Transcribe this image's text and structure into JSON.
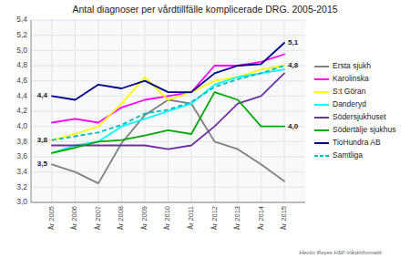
{
  "chart_data": {
    "type": "line",
    "title": "Antal diagnoser per vårdtillfälle komplicerade DRG. 2005-2015",
    "categories": [
      "År 2005",
      "År 2006",
      "År 2007",
      "År 2008",
      "År 2009",
      "År 2010",
      "År 2011",
      "År 2012",
      "År 2013",
      "År 2014",
      "År 2015"
    ],
    "series": [
      {
        "name": "Ersta sjukh",
        "color": "#808080",
        "line_style": "solid",
        "values": [
          3.5,
          3.4,
          3.25,
          3.78,
          4.15,
          4.35,
          4.3,
          3.8,
          3.7,
          3.5,
          3.28
        ]
      },
      {
        "name": "Karolinska",
        "color": "#ff00ff",
        "line_style": "solid",
        "values": [
          4.05,
          4.1,
          4.05,
          4.25,
          4.35,
          4.4,
          4.45,
          4.8,
          4.8,
          4.85,
          4.95
        ]
      },
      {
        "name": "S:t Göran",
        "color": "#ffff00",
        "line_style": "solid",
        "values": [
          3.82,
          3.9,
          4.0,
          4.3,
          4.65,
          4.35,
          4.45,
          4.6,
          4.65,
          4.75,
          4.8
        ]
      },
      {
        "name": "Danderyd",
        "color": "#00ffff",
        "line_style": "solid",
        "values": [
          3.65,
          3.75,
          3.8,
          4.0,
          4.1,
          4.2,
          4.3,
          4.55,
          4.65,
          4.7,
          4.75
        ]
      },
      {
        "name": "Södersjukhuset",
        "color": "#7030a0",
        "line_style": "solid",
        "values": [
          3.75,
          3.75,
          3.75,
          3.75,
          3.75,
          3.7,
          3.75,
          4.0,
          4.3,
          4.4,
          4.7
        ]
      },
      {
        "name": "Södertälje sjukhus",
        "color": "#00aa00",
        "line_style": "solid",
        "values": [
          3.65,
          3.72,
          3.8,
          3.82,
          3.88,
          3.95,
          3.9,
          4.45,
          4.35,
          4.0,
          4.0
        ]
      },
      {
        "name": "TioHundra AB",
        "color": "#00008b",
        "line_style": "solid",
        "values": [
          4.4,
          4.35,
          4.55,
          4.5,
          4.6,
          4.45,
          4.45,
          4.7,
          4.8,
          4.82,
          5.1
        ]
      },
      {
        "name": "Samtliga",
        "color": "#00bbbb",
        "line_style": "dashed",
        "values": [
          3.82,
          3.87,
          3.92,
          4.02,
          4.17,
          4.22,
          4.32,
          4.52,
          4.62,
          4.7,
          4.8
        ]
      }
    ],
    "ylim": [
      3.0,
      5.4
    ],
    "yticks": [
      {
        "value": 3.0,
        "label": "3,0"
      },
      {
        "value": 3.2,
        "label": "3,2"
      },
      {
        "value": 3.4,
        "label": "3,4"
      },
      {
        "value": 3.6,
        "label": "3,6"
      },
      {
        "value": 3.8,
        "label": "3,8"
      },
      {
        "value": 4.0,
        "label": "4,0"
      },
      {
        "value": 4.2,
        "label": "4,2"
      },
      {
        "value": 4.4,
        "label": "4,4"
      },
      {
        "value": 4.6,
        "label": "4,6"
      },
      {
        "value": 4.8,
        "label": "4,8"
      },
      {
        "value": 5.0,
        "label": "5,0"
      },
      {
        "value": 5.2,
        "label": "5,2"
      },
      {
        "value": 5.4,
        "label": "5,4"
      }
    ],
    "grid": true,
    "legend": "right",
    "annotations": [
      {
        "text": "4,4",
        "x": "År 2005",
        "y": 4.4,
        "side": "left"
      },
      {
        "text": "3,8",
        "x": "År 2005",
        "y": 3.82,
        "side": "left"
      },
      {
        "text": "3,5",
        "x": "År 2005",
        "y": 3.5,
        "side": "left"
      },
      {
        "text": "5,1",
        "x": "År 2015",
        "y": 5.1,
        "side": "right"
      },
      {
        "text": "4,8",
        "x": "År 2015",
        "y": 4.8,
        "side": "right"
      },
      {
        "text": "4,0",
        "x": "År 2015",
        "y": 4.0,
        "side": "right"
      }
    ],
    "watermark": "Hector Reyes HSF-Vårdinformatik"
  }
}
